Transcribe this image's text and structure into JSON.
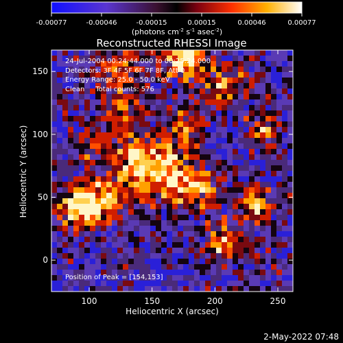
{
  "chart_data": {
    "type": "heatmap",
    "title": "Reconstructed RHESSI Image",
    "xlabel": "Heliocentric X (arcsec)",
    "ylabel": "Heliocentric Y (arcsec)",
    "xlim": [
      70,
      262
    ],
    "ylim": [
      -25,
      167
    ],
    "xticks": [
      "100",
      "150",
      "200",
      "250"
    ],
    "xtick_values": [
      100,
      150,
      200,
      250
    ],
    "yticks": [
      "0",
      "50",
      "100",
      "150"
    ],
    "ytick_values": [
      0,
      50,
      100,
      150
    ],
    "colorbar": {
      "range": [
        -0.00077,
        0.00077
      ],
      "tick_labels": [
        "-0.00077",
        "-0.00046",
        "-0.00015",
        "0.00015",
        "0.00046",
        "0.00077"
      ],
      "unit_prefix": "(photons cm",
      "unit_sup1": "-2",
      "unit_mid": " s",
      "unit_sup2": "-1",
      "unit_mid2": " asec",
      "unit_sup3": "-2",
      "unit_suffix": ")"
    },
    "annotations": [
      "24-Jul-2004 00:24:44.000 to 00:25:24.000",
      "Detectors: 3F 4F 5F 6F 7F 8F, Att 0",
      "Energy Range: 25.0 - 50.0 keV",
      "Clean     Total counts: 576"
    ],
    "peak_label": "Position of Peak = [154,153]",
    "peak_position": [
      154,
      153
    ],
    "grid": false
  },
  "footer": {
    "timestamp": "2-May-2022 07:48"
  }
}
